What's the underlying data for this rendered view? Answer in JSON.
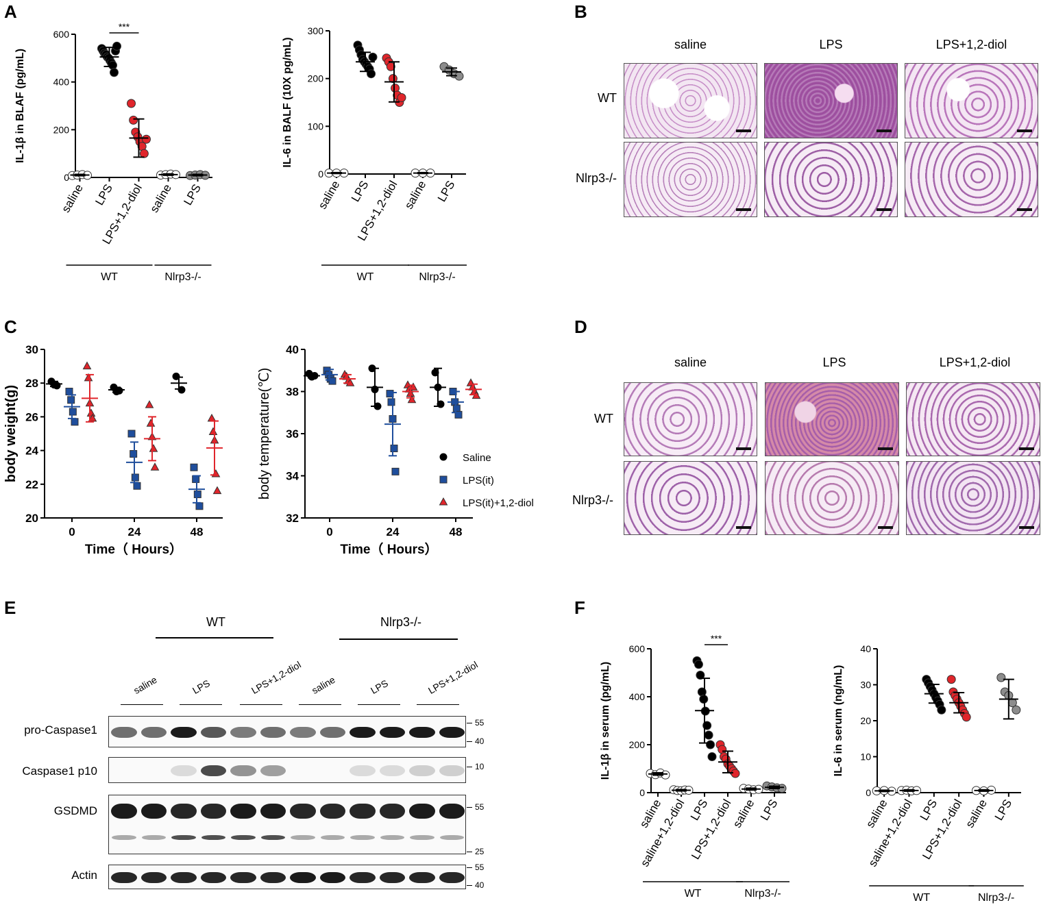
{
  "panels": {
    "A": "A",
    "B": "B",
    "C": "C",
    "D": "D",
    "E": "E",
    "F": "F"
  },
  "colors": {
    "saline": "#000000",
    "lps_blue": "#1f4e9c",
    "diol_red": "#e0252b",
    "ko_grey": "#8c8c8c",
    "wt_white": "#ffffff"
  },
  "chart_data": [
    {
      "id": "A1",
      "type": "scatter",
      "ylabel": "IL-1β in BLAF (pg/mL)",
      "ylim": [
        0,
        600
      ],
      "yticks": [
        "0",
        "200",
        "400",
        "600"
      ],
      "ytick_values": [
        0,
        200,
        400,
        600
      ],
      "categories": [
        "saline",
        "LPS",
        "LPS+1,2-diol",
        "saline",
        "LPS"
      ],
      "groups": [
        {
          "label": "WT",
          "span": [
            0,
            2
          ]
        },
        {
          "label": "Nlrp3-/-",
          "span": [
            3,
            4
          ]
        }
      ],
      "significance": {
        "text": "***",
        "between": [
          1,
          2
        ]
      },
      "series": [
        {
          "color": "#ffffff",
          "mean": 10,
          "sd": 3,
          "points": [
            8,
            10,
            12,
            9
          ]
        },
        {
          "color": "#000000",
          "mean": 505,
          "sd": 40,
          "points": [
            540,
            530,
            520,
            515,
            505,
            500,
            490,
            480,
            470,
            440,
            530,
            550
          ]
        },
        {
          "color": "#e0252b",
          "mean": 165,
          "sd": 80,
          "points": [
            310,
            240,
            190,
            170,
            150,
            130,
            100,
            160
          ]
        },
        {
          "color": "#ffffff",
          "mean": 12,
          "sd": 3,
          "points": [
            10,
            12,
            14,
            12
          ]
        },
        {
          "color": "#8c8c8c",
          "mean": 10,
          "sd": 3,
          "points": [
            8,
            10,
            12,
            9
          ]
        }
      ]
    },
    {
      "id": "A2",
      "type": "scatter",
      "ylabel": "IL-6 in BALF (10X pg/mL)",
      "ylim": [
        0,
        300
      ],
      "yticks": [
        "0",
        "100",
        "200",
        "300"
      ],
      "ytick_values": [
        0,
        100,
        200,
        300
      ],
      "categories": [
        "saline",
        "LPS",
        "LPS+1,2-diol",
        "saline",
        "LPS"
      ],
      "groups": [
        {
          "label": "WT",
          "span": [
            0,
            2
          ]
        },
        {
          "label": "Nlrp3-/-",
          "span": [
            3,
            4
          ]
        }
      ],
      "series": [
        {
          "color": "#ffffff",
          "mean": 2,
          "sd": 1,
          "points": [
            2,
            2,
            2
          ]
        },
        {
          "color": "#000000",
          "mean": 235,
          "sd": 20,
          "points": [
            270,
            260,
            250,
            240,
            235,
            230,
            225,
            220,
            210,
            245
          ]
        },
        {
          "color": "#e0252b",
          "mean": 193,
          "sd": 42,
          "points": [
            243,
            235,
            225,
            200,
            180,
            165,
            150,
            160
          ]
        },
        {
          "color": "#ffffff",
          "mean": 2,
          "sd": 1,
          "points": [
            2,
            2,
            2
          ]
        },
        {
          "color": "#8c8c8c",
          "mean": 214,
          "sd": 8,
          "points": [
            225,
            218,
            210,
            205
          ]
        }
      ]
    },
    {
      "id": "C1",
      "type": "scatter",
      "ylabel": "body weight(g)",
      "xlabel": "Time（ Hours）",
      "ylim": [
        20,
        30
      ],
      "yticks": [
        "20",
        "22",
        "24",
        "26",
        "28",
        "30"
      ],
      "ytick_values": [
        20,
        22,
        24,
        26,
        28,
        30
      ],
      "xticks": [
        "0",
        "24",
        "48"
      ],
      "series": [
        {
          "name": "Saline",
          "color": "#000000",
          "marker": "circle",
          "timepoints": [
            {
              "mean": 27.95,
              "sd": 0.15,
              "points": [
                28.1,
                27.9,
                27.85
              ]
            },
            {
              "mean": 27.6,
              "sd": 0.15,
              "points": [
                27.75,
                27.5,
                27.55
              ]
            },
            {
              "mean": 28.0,
              "sd": 0.35,
              "points": [
                28.4,
                27.6
              ]
            }
          ]
        },
        {
          "name": "LPS(it)",
          "color": "#1f4e9c",
          "marker": "square",
          "timepoints": [
            {
              "mean": 26.6,
              "sd": 0.7,
              "points": [
                27.5,
                27.0,
                26.3,
                25.7
              ]
            },
            {
              "mean": 23.3,
              "sd": 1.2,
              "points": [
                25.0,
                23.8,
                22.4,
                21.9
              ]
            },
            {
              "mean": 21.7,
              "sd": 0.8,
              "points": [
                23.0,
                22.3,
                21.4,
                20.7
              ]
            }
          ]
        },
        {
          "name": "LPS(it)+1,2-diol",
          "color": "#e0252b",
          "marker": "triangle",
          "timepoints": [
            {
              "mean": 27.1,
              "sd": 1.4,
              "points": [
                29.0,
                28.3,
                26.8,
                26.2,
                25.9
              ]
            },
            {
              "mean": 24.7,
              "sd": 1.3,
              "points": [
                26.7,
                25.6,
                24.8,
                24.1,
                23.0
              ]
            },
            {
              "mean": 24.15,
              "sd": 1.6,
              "points": [
                25.9,
                25.1,
                24.6,
                22.6,
                21.6
              ]
            }
          ]
        }
      ]
    },
    {
      "id": "C2",
      "type": "scatter",
      "ylabel": "body temperature(℃)",
      "xlabel": "Time（ Hours）",
      "ylim": [
        32,
        40
      ],
      "yticks": [
        "32",
        "34",
        "36",
        "38",
        "40"
      ],
      "ytick_values": [
        32,
        34,
        36,
        38,
        40
      ],
      "xticks": [
        "0",
        "24",
        "48"
      ],
      "legend": "right",
      "series": [
        {
          "name": "Saline",
          "color": "#000000",
          "marker": "circle",
          "timepoints": [
            {
              "mean": 38.75,
              "sd": 0.1,
              "points": [
                38.85,
                38.7,
                38.75
              ]
            },
            {
              "mean": 38.2,
              "sd": 0.9,
              "points": [
                39.1,
                38.1,
                37.3
              ]
            },
            {
              "mean": 38.2,
              "sd": 0.9,
              "points": [
                38.9,
                38.2,
                37.4
              ]
            }
          ]
        },
        {
          "name": "LPS(it)",
          "color": "#1f4e9c",
          "marker": "square",
          "timepoints": [
            {
              "mean": 38.8,
              "sd": 0.25,
              "points": [
                39.0,
                38.8,
                38.6,
                38.5
              ]
            },
            {
              "mean": 36.45,
              "sd": 1.5,
              "points": [
                37.9,
                37.5,
                36.7,
                35.3,
                34.2
              ]
            },
            {
              "mean": 37.5,
              "sd": 0.5,
              "points": [
                38.0,
                37.5,
                37.2,
                36.9
              ]
            }
          ]
        },
        {
          "name": "LPS(it)+1,2-diol",
          "color": "#e0252b",
          "marker": "triangle",
          "timepoints": [
            {
              "mean": 38.6,
              "sd": 0.2,
              "points": [
                38.8,
                38.7,
                38.5,
                38.4
              ]
            },
            {
              "mean": 38.0,
              "sd": 0.3,
              "points": [
                38.3,
                38.1,
                37.9,
                37.6,
                38.2
              ]
            },
            {
              "mean": 38.1,
              "sd": 0.25,
              "points": [
                38.4,
                38.2,
                38.0,
                37.8
              ]
            }
          ]
        }
      ]
    },
    {
      "id": "F1",
      "type": "scatter",
      "ylabel": "IL-1β in serum (pg/mL)",
      "ylim": [
        0,
        600
      ],
      "yticks": [
        "0",
        "200",
        "400",
        "600"
      ],
      "ytick_values": [
        0,
        200,
        400,
        600
      ],
      "categories": [
        "saline",
        "saline+1,2-diol",
        "LPS",
        "LPS+1,2-diol",
        "saline",
        "LPS"
      ],
      "groups": [
        {
          "label": "WT",
          "span": [
            0,
            3
          ]
        },
        {
          "label": "Nlrp3-/-",
          "span": [
            4,
            5
          ]
        }
      ],
      "significance": {
        "text": "***",
        "between": [
          2,
          3
        ]
      },
      "series": [
        {
          "color": "#ffffff",
          "mean": 78,
          "sd": 5,
          "points": [
            80,
            75,
            82,
            74
          ]
        },
        {
          "color": "#ffffff",
          "mean": 10,
          "sd": 3,
          "points": [
            12,
            9,
            8,
            11,
            10
          ]
        },
        {
          "color": "#000000",
          "mean": 342,
          "sd": 135,
          "points": [
            550,
            535,
            490,
            420,
            390,
            340,
            280,
            240,
            200,
            150
          ]
        },
        {
          "color": "#e0252b",
          "mean": 128,
          "sd": 45,
          "points": [
            200,
            180,
            150,
            140,
            120,
            110,
            100,
            90,
            80
          ]
        },
        {
          "color": "#ffffff",
          "mean": 15,
          "sd": 4,
          "points": [
            18,
            15,
            12,
            14
          ]
        },
        {
          "color": "#8c8c8c",
          "mean": 22,
          "sd": 5,
          "points": [
            28,
            24,
            20,
            18
          ]
        }
      ]
    },
    {
      "id": "F2",
      "type": "scatter",
      "ylabel": "IL-6 in serum (ng/mL)",
      "ylim": [
        0,
        40
      ],
      "yticks": [
        "0",
        "10",
        "20",
        "30",
        "40"
      ],
      "ytick_values": [
        0,
        10,
        20,
        30,
        40
      ],
      "categories": [
        "saline",
        "saline+1,2-diol",
        "LPS",
        "LPS+1,2-diol",
        "saline",
        "LPS"
      ],
      "groups": [
        {
          "label": "WT",
          "span": [
            0,
            3
          ]
        },
        {
          "label": "Nlrp3-/-",
          "span": [
            4,
            5
          ]
        }
      ],
      "series": [
        {
          "color": "#ffffff",
          "mean": 0.5,
          "sd": 0.2,
          "points": [
            0.5,
            0.6,
            0.4
          ]
        },
        {
          "color": "#ffffff",
          "mean": 0.6,
          "sd": 0.2,
          "points": [
            0.6,
            0.7,
            0.5,
            0.6
          ]
        },
        {
          "color": "#000000",
          "mean": 27.5,
          "sd": 2.6,
          "points": [
            31.5,
            30.5,
            29.5,
            28.5,
            27.5,
            26.5,
            25.5,
            24.5,
            23
          ]
        },
        {
          "color": "#e0252b",
          "mean": 25,
          "sd": 2.8,
          "points": [
            31.5,
            28,
            27,
            26,
            25,
            24,
            23,
            22,
            21
          ]
        },
        {
          "color": "#ffffff",
          "mean": 0.6,
          "sd": 0.2,
          "points": [
            0.6,
            0.5,
            0.7
          ]
        },
        {
          "color": "#8c8c8c",
          "mean": 26,
          "sd": 5.5,
          "points": [
            32,
            28,
            27,
            25,
            23
          ]
        }
      ]
    }
  ],
  "histology": {
    "columns": [
      "saline",
      "LPS",
      "LPS+1,2-diol"
    ],
    "rows": [
      "WT",
      "Nlrp3-/-"
    ]
  },
  "western": {
    "group_labels": [
      "WT",
      "Nlrp3-/-"
    ],
    "lanes": [
      "saline",
      "LPS",
      "LPS+1,2-diol",
      "saline",
      "LPS",
      "LPS+1,2-diol"
    ],
    "blots": [
      {
        "label": "pro-Caspase1",
        "markers": [
          "55",
          "40"
        ],
        "intensity": [
          0.6,
          0.6,
          0.95,
          0.7,
          0.55,
          0.6,
          0.55,
          0.6,
          0.95,
          0.95,
          0.95,
          0.95
        ]
      },
      {
        "label": "Caspase1 p10",
        "markers": [
          "10"
        ],
        "intensity": [
          0,
          0,
          0.15,
          0.75,
          0.45,
          0.4,
          0,
          0,
          0.15,
          0.15,
          0.2,
          0.2
        ]
      },
      {
        "label": "GSDMD",
        "markers": [
          "55",
          "25"
        ],
        "intensity": [
          0.95,
          0.95,
          0.9,
          0.9,
          0.95,
          0.95,
          0.9,
          0.9,
          0.9,
          0.9,
          0.95,
          0.95
        ]
      },
      {
        "label": "Actin",
        "markers": [
          "55",
          "40"
        ],
        "intensity": [
          0.9,
          0.9,
          0.9,
          0.9,
          0.9,
          0.9,
          0.95,
          0.95,
          0.9,
          0.9,
          0.9,
          0.9
        ]
      }
    ]
  },
  "legend": {
    "items": [
      "Saline",
      "LPS(it)",
      "LPS(it)+1,2-diol"
    ]
  }
}
